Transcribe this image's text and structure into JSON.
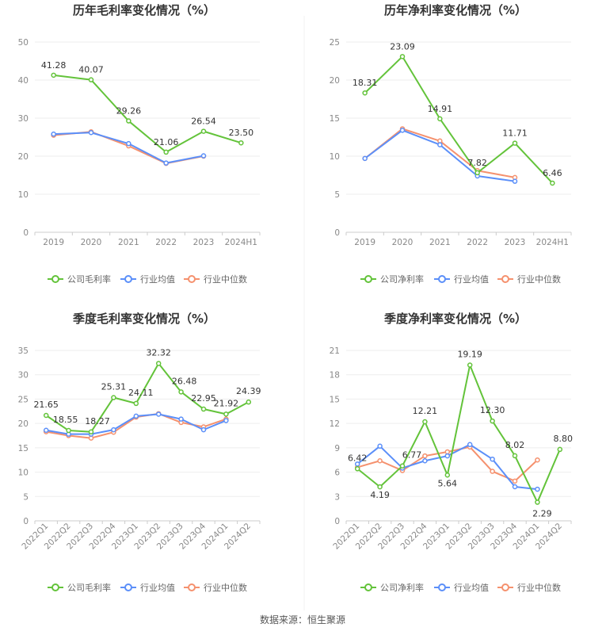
{
  "colors": {
    "company": "#63c33a",
    "industry_avg": "#5b8ff9",
    "industry_median": "#f5916e"
  },
  "source": "数据来源：恒生聚源",
  "chart_data": [
    {
      "type": "line",
      "title": "历年毛利率变化情况（%）",
      "categories": [
        "2019",
        "2020",
        "2021",
        "2022",
        "2023",
        "2024H1"
      ],
      "ylim": [
        0,
        50
      ],
      "yticks": [
        0,
        10,
        20,
        30,
        40,
        50
      ],
      "grid": true,
      "legend_position": "bottom",
      "series": [
        {
          "name": "公司毛利率",
          "values": [
            41.28,
            40.07,
            29.26,
            21.06,
            26.54,
            23.5
          ],
          "labels": [
            "41.28",
            "40.07",
            "29.26",
            "21.06",
            "26.54",
            "23.50"
          ]
        },
        {
          "name": "行业均值",
          "values": [
            25.8,
            26.2,
            23.3,
            18.2,
            20.1,
            null
          ]
        },
        {
          "name": "行业中位数",
          "values": [
            25.5,
            26.4,
            22.7,
            18.1,
            20.0,
            null
          ]
        }
      ]
    },
    {
      "type": "line",
      "title": "历年净利率变化情况（%）",
      "categories": [
        "2019",
        "2020",
        "2021",
        "2022",
        "2023",
        "2024H1"
      ],
      "ylim": [
        0,
        25
      ],
      "yticks": [
        0,
        5,
        10,
        15,
        20,
        25
      ],
      "grid": true,
      "legend_position": "bottom",
      "series": [
        {
          "name": "公司净利率",
          "values": [
            18.31,
            23.09,
            14.91,
            7.82,
            11.71,
            6.46
          ],
          "labels": [
            "18.31",
            "23.09",
            "14.91",
            "7.82",
            "11.71",
            "6.46"
          ]
        },
        {
          "name": "行业均值",
          "values": [
            9.7,
            13.4,
            11.5,
            7.4,
            6.7,
            null
          ]
        },
        {
          "name": "行业中位数",
          "values": [
            9.7,
            13.6,
            12.0,
            8.1,
            7.2,
            null
          ]
        }
      ]
    },
    {
      "type": "line",
      "title": "季度毛利率变化情况（%）",
      "categories": [
        "2022Q1",
        "2022Q2",
        "2022Q3",
        "2022Q4",
        "2023Q1",
        "2023Q2",
        "2023Q3",
        "2023Q4",
        "2024Q1",
        "2024Q2"
      ],
      "ylim": [
        0,
        35
      ],
      "yticks": [
        0,
        5,
        10,
        15,
        20,
        25,
        30,
        35
      ],
      "grid": true,
      "legend_position": "bottom",
      "series": [
        {
          "name": "公司毛利率",
          "values": [
            21.65,
            18.55,
            18.27,
            25.31,
            24.11,
            32.32,
            26.48,
            22.95,
            21.92,
            24.39
          ],
          "labels": [
            "21.65",
            "18.55",
            "18.27",
            "25.31",
            "24.11",
            "32.32",
            "26.48",
            "22.95",
            "21.92",
            "24.39"
          ]
        },
        {
          "name": "行业均值",
          "values": [
            18.6,
            17.8,
            17.8,
            18.7,
            21.5,
            21.9,
            20.9,
            18.7,
            20.6,
            null
          ]
        },
        {
          "name": "行业中位数",
          "values": [
            18.3,
            17.5,
            17.0,
            18.2,
            21.3,
            22.0,
            20.2,
            19.3,
            20.9,
            null
          ]
        }
      ]
    },
    {
      "type": "line",
      "title": "季度净利率变化情况（%）",
      "categories": [
        "2022Q1",
        "2022Q2",
        "2022Q3",
        "2022Q4",
        "2023Q1",
        "2023Q2",
        "2023Q3",
        "2023Q4",
        "2024Q1",
        "2024Q2"
      ],
      "ylim": [
        0,
        21
      ],
      "yticks": [
        0,
        3,
        6,
        9,
        12,
        15,
        18,
        21
      ],
      "grid": true,
      "legend_position": "bottom",
      "series": [
        {
          "name": "公司净利率",
          "values": [
            6.42,
            4.19,
            6.77,
            12.21,
            5.64,
            19.19,
            12.3,
            8.02,
            2.29,
            8.8
          ],
          "labels": [
            "6.42",
            "4.19",
            "6.77",
            "12.21",
            "5.64",
            "19.19",
            "12.30",
            "8.02",
            "2.29",
            "8.80"
          ]
        },
        {
          "name": "行业均值",
          "values": [
            7.0,
            9.2,
            6.5,
            7.4,
            8.0,
            9.4,
            7.6,
            4.2,
            3.9,
            null
          ]
        },
        {
          "name": "行业中位数",
          "values": [
            6.6,
            7.4,
            6.2,
            8.0,
            8.5,
            9.1,
            6.1,
            4.9,
            7.5,
            null
          ]
        }
      ]
    }
  ]
}
